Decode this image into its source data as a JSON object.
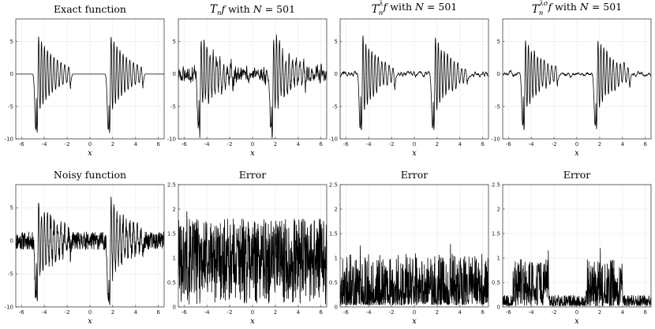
{
  "chart_data": [
    {
      "type": "line",
      "title": "Exact function",
      "title_parts": [
        {
          "t": "Exact function",
          "s": ""
        }
      ],
      "xlabel": "x",
      "ylabel": "",
      "xlim": [
        -6.5,
        6.5
      ],
      "ylim": [
        -10,
        8.5
      ],
      "xticks": [
        -6,
        -4,
        -2,
        0,
        2,
        4,
        6
      ],
      "yticks": [
        -10,
        -5,
        0,
        5
      ],
      "grid": true,
      "signal": "exact"
    },
    {
      "type": "line",
      "title": "T_n f with N = 501",
      "title_parts": [
        {
          "t": "T",
          "s": "script"
        },
        {
          "t": "n",
          "s": "sub"
        },
        {
          "t": "f",
          "s": "italic"
        },
        {
          "t": " with ",
          "s": ""
        },
        {
          "t": "N",
          "s": "italic"
        },
        {
          "t": " = 501",
          "s": ""
        }
      ],
      "xlabel": "x",
      "ylabel": "",
      "xlim": [
        -6.5,
        6.5
      ],
      "ylim": [
        -10,
        8.5
      ],
      "xticks": [
        -6,
        -4,
        -2,
        0,
        2,
        4,
        6
      ],
      "yticks": [
        -10,
        -5,
        0,
        5
      ],
      "grid": true,
      "signal": "approx_noisy"
    },
    {
      "type": "line",
      "title": "T_n^λ f with N = 501",
      "title_parts": [
        {
          "t": "T",
          "s": "script"
        },
        {
          "t": "n",
          "s": "sub"
        },
        {
          "t": "λ",
          "s": "sup"
        },
        {
          "t": "f",
          "s": "italic"
        },
        {
          "t": " with ",
          "s": ""
        },
        {
          "t": "N",
          "s": "italic"
        },
        {
          "t": " = 501",
          "s": ""
        }
      ],
      "xlabel": "x",
      "ylabel": "",
      "xlim": [
        -6.5,
        6.5
      ],
      "ylim": [
        -10,
        8.5
      ],
      "xticks": [
        -6,
        -4,
        -2,
        0,
        2,
        4,
        6
      ],
      "yticks": [
        -10,
        -5,
        0,
        5
      ],
      "grid": true,
      "signal": "approx_smooth"
    },
    {
      "type": "line",
      "title": "T_n^λσ f with N = 501",
      "title_parts": [
        {
          "t": "T",
          "s": "script"
        },
        {
          "t": "n",
          "s": "sub"
        },
        {
          "t": "λσ",
          "s": "sup"
        },
        {
          "t": "f",
          "s": "italic"
        },
        {
          "t": " with ",
          "s": ""
        },
        {
          "t": "N",
          "s": "italic"
        },
        {
          "t": " = 501",
          "s": ""
        }
      ],
      "xlabel": "x",
      "ylabel": "",
      "xlim": [
        -6.5,
        6.5
      ],
      "ylim": [
        -10,
        8.5
      ],
      "xticks": [
        -6,
        -4,
        -2,
        0,
        2,
        4,
        6
      ],
      "yticks": [
        -10,
        -5,
        0,
        5
      ],
      "grid": true,
      "signal": "approx_smoother"
    },
    {
      "type": "line",
      "title": "Noisy function",
      "title_parts": [
        {
          "t": "Noisy function",
          "s": ""
        }
      ],
      "xlabel": "x",
      "ylabel": "",
      "xlim": [
        -6.5,
        6.5
      ],
      "ylim": [
        -10,
        8.5
      ],
      "xticks": [
        -6,
        -4,
        -2,
        0,
        2,
        4,
        6
      ],
      "yticks": [
        -10,
        -5,
        0,
        5
      ],
      "grid": true,
      "signal": "noisy"
    },
    {
      "type": "line",
      "title": "Error",
      "title_parts": [
        {
          "t": "Error",
          "s": ""
        }
      ],
      "xlabel": "x",
      "ylabel": "",
      "xlim": [
        -6.5,
        6.5
      ],
      "ylim": [
        0,
        2.5
      ],
      "xticks": [
        -6,
        -4,
        -2,
        0,
        2,
        4,
        6
      ],
      "yticks": [
        0,
        0.5,
        1,
        1.5,
        2,
        2.5
      ],
      "grid": true,
      "signal": "error_large",
      "value_range": [
        0,
        1.95
      ]
    },
    {
      "type": "line",
      "title": "Error",
      "title_parts": [
        {
          "t": "Error",
          "s": ""
        }
      ],
      "xlabel": "x",
      "ylabel": "",
      "xlim": [
        -6.5,
        6.5
      ],
      "ylim": [
        0,
        2.5
      ],
      "xticks": [
        -6,
        -4,
        -2,
        0,
        2,
        4,
        6
      ],
      "yticks": [
        0,
        0.5,
        1,
        1.5,
        2,
        2.5
      ],
      "grid": true,
      "signal": "error_medium",
      "value_range": [
        0,
        1.28
      ]
    },
    {
      "type": "line",
      "title": "Error",
      "title_parts": [
        {
          "t": "Error",
          "s": ""
        }
      ],
      "xlabel": "x",
      "ylabel": "",
      "xlim": [
        -6.5,
        6.5
      ],
      "ylim": [
        0,
        2.5
      ],
      "xticks": [
        -6,
        -4,
        -2,
        0,
        2,
        4,
        6
      ],
      "yticks": [
        0,
        0.5,
        1,
        1.5,
        2,
        2.5
      ],
      "grid": true,
      "signal": "error_small",
      "value_range": [
        0,
        1.2
      ]
    }
  ]
}
